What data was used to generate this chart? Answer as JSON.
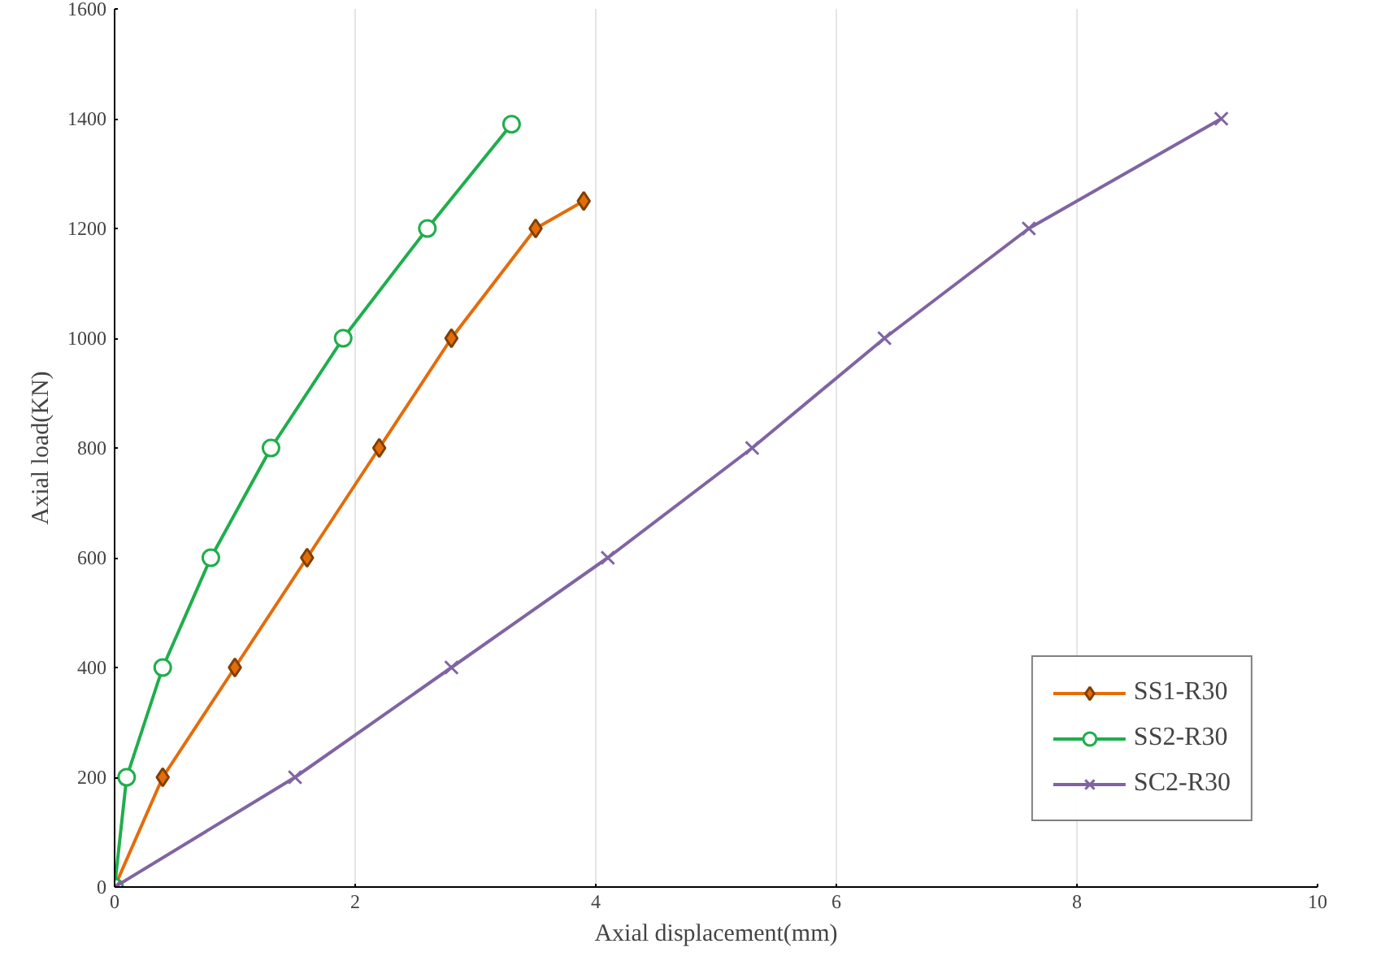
{
  "chart_data": {
    "type": "line",
    "xlabel": "Axial displacement(mm)",
    "ylabel": "Axial load(KN)",
    "xlim": [
      0,
      10
    ],
    "xticks": [
      0,
      2,
      4,
      6,
      8,
      10
    ],
    "ylim": [
      0,
      1600
    ],
    "yticks": [
      0,
      200,
      400,
      600,
      800,
      1000,
      1200,
      1400,
      1600
    ],
    "grid": "x",
    "legend": "bottom right",
    "series": [
      {
        "name": "SS1-R30",
        "color": "#e46c0a",
        "marker": "diamond",
        "x": [
          0,
          0.4,
          1.0,
          1.6,
          2.2,
          2.8,
          3.5,
          3.9
        ],
        "values": [
          0,
          200,
          400,
          600,
          800,
          1000,
          1200,
          1250
        ]
      },
      {
        "name": "SS2-R30",
        "color": "#1fae4c",
        "marker": "circle",
        "x": [
          0,
          0.1,
          0.4,
          0.8,
          1.3,
          1.9,
          2.6,
          3.3
        ],
        "values": [
          0,
          200,
          400,
          600,
          800,
          1000,
          1200,
          1390
        ]
      },
      {
        "name": "SC2-R30",
        "color": "#8064a2",
        "marker": "cross",
        "x": [
          0,
          1.5,
          2.8,
          4.1,
          5.3,
          6.4,
          7.6,
          9.2
        ],
        "values": [
          0,
          200,
          400,
          600,
          800,
          1000,
          1200,
          1400
        ]
      }
    ]
  }
}
